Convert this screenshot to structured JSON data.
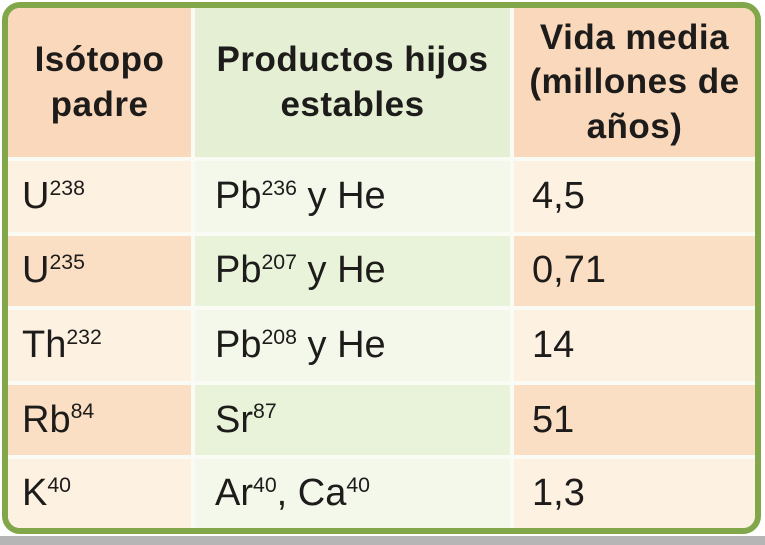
{
  "colors": {
    "border_green": "#82a74b",
    "gap_white": "#fbfbf5",
    "header_peach": "#fad8bc",
    "header_green": "#e4efd3",
    "row_peach_light": "#fdf1e2",
    "row_peach_dark": "#fbdfc5",
    "row_green_light": "#f3f8eb",
    "row_green_dark": "#e9f3da",
    "shadow_gray": "#b5b5b5",
    "text": "#1d1c1a"
  },
  "table": {
    "headers": [
      "Isótopo padre",
      "Productos hijos estables",
      "Vida media (millones de años)"
    ],
    "rows": [
      {
        "parent": "U^{238}",
        "products": "Pb^{236} y He",
        "half_life": "4,5"
      },
      {
        "parent": "U^{235}",
        "products": "Pb^{207} y He",
        "half_life": "0,71"
      },
      {
        "parent": "Th^{232}",
        "products": "Pb^{208} y He",
        "half_life": "14"
      },
      {
        "parent": "Rb^{84}",
        "products": "Sr^{87}",
        "half_life": "51"
      },
      {
        "parent": "K^{40}",
        "products": "Ar^{40}, Ca^{40}",
        "half_life": "1,3"
      }
    ]
  }
}
